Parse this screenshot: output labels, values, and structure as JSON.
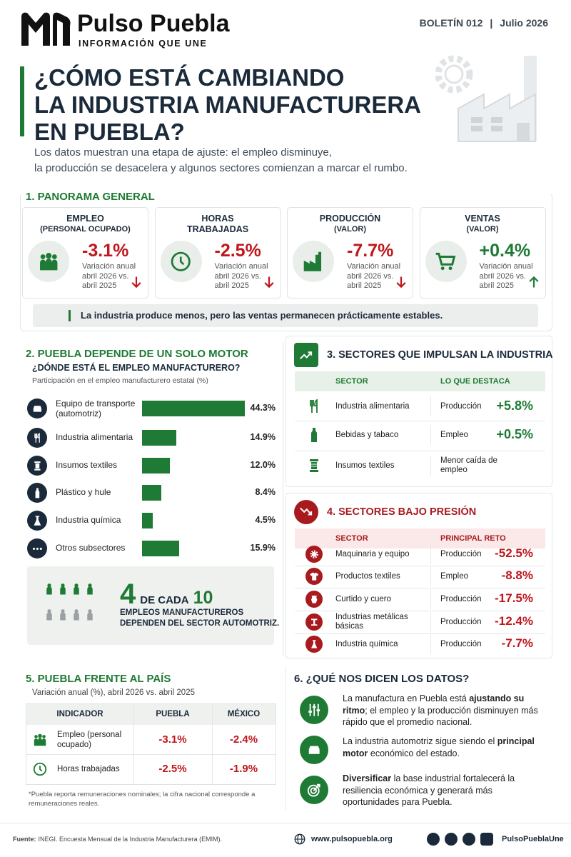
{
  "header": {
    "brand": "Pulso Puebla",
    "tagline": "INFORMACIÓN QUE UNE",
    "issue": "BOLETÍN 012",
    "separator": "|",
    "date": "Julio 2026"
  },
  "hero": {
    "title_lines": [
      "¿CÓMO ESTÁ CAMBIANDO",
      "LA INDUSTRIA MANUFACTURERA",
      "EN PUEBLA?"
    ],
    "subtitle_lines": [
      "Los datos muestran una etapa de ajuste: el empleo disminuye,",
      "la producción se desacelera y algunos sectores comienzan a marcar el rumbo."
    ]
  },
  "panorama": {
    "title": "1. PANORAMA GENERAL",
    "cards": [
      {
        "label": "EMPLEO",
        "sub": "(PERSONAL OCUPADO)",
        "value": "-3.1%",
        "note": "Variación anual abril 2026 vs. abril 2025",
        "direction": "down"
      },
      {
        "label": "HORAS TRABAJADAS",
        "value": "-2.5%",
        "note": "Variación anual abril 2026 vs. abril 2025",
        "direction": "down"
      },
      {
        "label": "PRODUCCIÓN",
        "sub": "(VALOR)",
        "value": "-7.7%",
        "note": "Variación anual abril 2026 vs. abril 2025",
        "direction": "down"
      },
      {
        "label": "VENTAS",
        "sub": "(VALOR)",
        "value": "+0.4%",
        "note": "Variación anual abril 2026 vs. abril 2025",
        "direction": "up"
      }
    ],
    "note": "La industria produce menos, pero las ventas permanecen prácticamente estables."
  },
  "motor": {
    "title": "2. PUEBLA DEPENDE DE UN SOLO MOTOR",
    "question": "¿DÓNDE ESTÁ EL EMPLEO MANUFACTURERO?",
    "caption": "Participación en el empleo manufacturero estatal (%)",
    "categories": [
      "Equipo de transporte (automotriz)",
      "Industria alimentaria",
      "Insumos textiles",
      "Plástico y hule",
      "Industria química",
      "Otros subsectores"
    ],
    "values": [
      44.3,
      14.9,
      12.0,
      8.4,
      4.5,
      15.9
    ],
    "value_labels": [
      "44.3%",
      "14.9%",
      "12.0%",
      "8.4%",
      "4.5%",
      "15.9%"
    ],
    "color": "#1e7a34",
    "callout": {
      "big": "4",
      "mid": "DE CADA",
      "big2": "10",
      "text_lines": [
        "EMPLEOS MANUFACTUREROS",
        "DEPENDEN DEL SECTOR AUTOMOTRIZ."
      ]
    }
  },
  "drivers": {
    "title": "3. SECTORES QUE IMPULSAN LA INDUSTRIA",
    "headers": [
      "SECTOR",
      "LO QUE DESTACA"
    ],
    "rows": [
      [
        "Industria alimentaria",
        "Producción",
        "+5.8%"
      ],
      [
        "Bebidas y tabaco",
        "Empleo",
        "+0.5%"
      ],
      [
        "Insumos textiles",
        "Menor caída de empleo"
      ]
    ]
  },
  "pressure": {
    "title": "4. SECTORES BAJO PRESIÓN",
    "headers": [
      "SECTOR",
      "PRINCIPAL RETO"
    ],
    "rows": [
      [
        "Maquinaria y equipo",
        "Producción",
        "-52.5%"
      ],
      [
        "Productos textiles",
        "Empleo",
        "-8.8%"
      ],
      [
        "Curtido y cuero",
        "Producción",
        "-17.5%"
      ],
      [
        "Industrias metálicas básicas",
        "Producción",
        "-12.4%"
      ],
      [
        "Industria química",
        "Producción",
        "-7.7%"
      ]
    ]
  },
  "country": {
    "title": "5. PUEBLA FRENTE AL PAÍS",
    "caption": "Variación anual (%), abril 2026 vs. abril 2025",
    "headers": [
      "INDICADOR",
      "PUEBLA",
      "MÉXICO"
    ],
    "rows": [
      [
        "Empleo (personal ocupado)",
        "-3.1%",
        "-2.4%"
      ],
      [
        "Horas trabajadas",
        "-2.5%",
        "-1.9%"
      ]
    ],
    "footnote": "*Puebla reporta remuneraciones nominales; la cifra nacional corresponde a remuneraciones reales."
  },
  "insights": {
    "title": "6. ¿QUÉ NOS DICEN LOS DATOS?",
    "items": [
      {
        "before": "La manufactura en Puebla está ",
        "bold": "ajustando su ritmo",
        "after": "; el empleo y la producción disminuyen más rápido que el promedio nacional."
      },
      {
        "before": "La industria automotriz sigue siendo el ",
        "bold": "principal motor",
        "after": " económico del estado."
      },
      {
        "bold": "Diversificar",
        "after": " la base industrial fortalecerá la resiliencia económica y generará más oportunidades para Puebla."
      }
    ]
  },
  "footer": {
    "source_label": "Fuente:",
    "source": "INEGI. Encuesta Mensual de la Industria Manufacturera (EMIM).",
    "website": "www.pulsopuebla.org",
    "handle": "PulsoPueblaUne"
  }
}
